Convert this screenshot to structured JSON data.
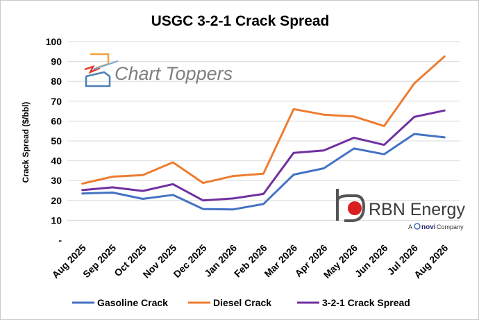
{
  "chart_data": {
    "type": "line",
    "title": "USGC 3-2-1 Crack Spread",
    "ylabel": "Crack Spread ($/bbl)",
    "xlabel": "",
    "ylim": [
      0,
      100
    ],
    "y_ticks": [
      "-",
      "10",
      "20",
      "30",
      "40",
      "50",
      "60",
      "70",
      "80",
      "90",
      "100"
    ],
    "y_tick_values": [
      0,
      10,
      20,
      30,
      40,
      50,
      60,
      70,
      80,
      90,
      100
    ],
    "categories": [
      "Aug 2025",
      "Sep 2025",
      "Oct 2025",
      "Nov 2025",
      "Dec 2025",
      "Jan 2026",
      "Feb 2026",
      "Mar 2026",
      "Apr 2026",
      "May 2026",
      "Jun 2026",
      "Jul 2026",
      "Aug 2026"
    ],
    "grid": "horizontal",
    "legend_position": "bottom",
    "series": [
      {
        "name": "Gasoline Crack",
        "color": "#4472c4",
        "values": [
          23.5,
          24,
          20.8,
          22.8,
          15.7,
          15.5,
          18.2,
          33,
          36.2,
          46.2,
          43.3,
          53.5,
          51.8
        ]
      },
      {
        "name": "Diesel Crack",
        "color": "#ed7d31",
        "values": [
          28.5,
          32,
          32.8,
          39.2,
          28.8,
          32.3,
          33.5,
          66,
          63.2,
          62.3,
          57.5,
          79,
          92.5
        ]
      },
      {
        "name": "3-2-1 Crack Spread",
        "color": "#7030a0",
        "values": [
          25.2,
          26.6,
          24.8,
          28.2,
          20,
          21,
          23.3,
          44,
          45.2,
          51.6,
          48,
          62.1,
          65.3
        ]
      }
    ]
  },
  "logos": {
    "chart_toppers": "Chart Toppers",
    "rbn_name": "RBN Energy",
    "rbn_tagline_a": "A",
    "rbn_tagline_novi": "novi",
    "rbn_tagline_company": "Company"
  }
}
